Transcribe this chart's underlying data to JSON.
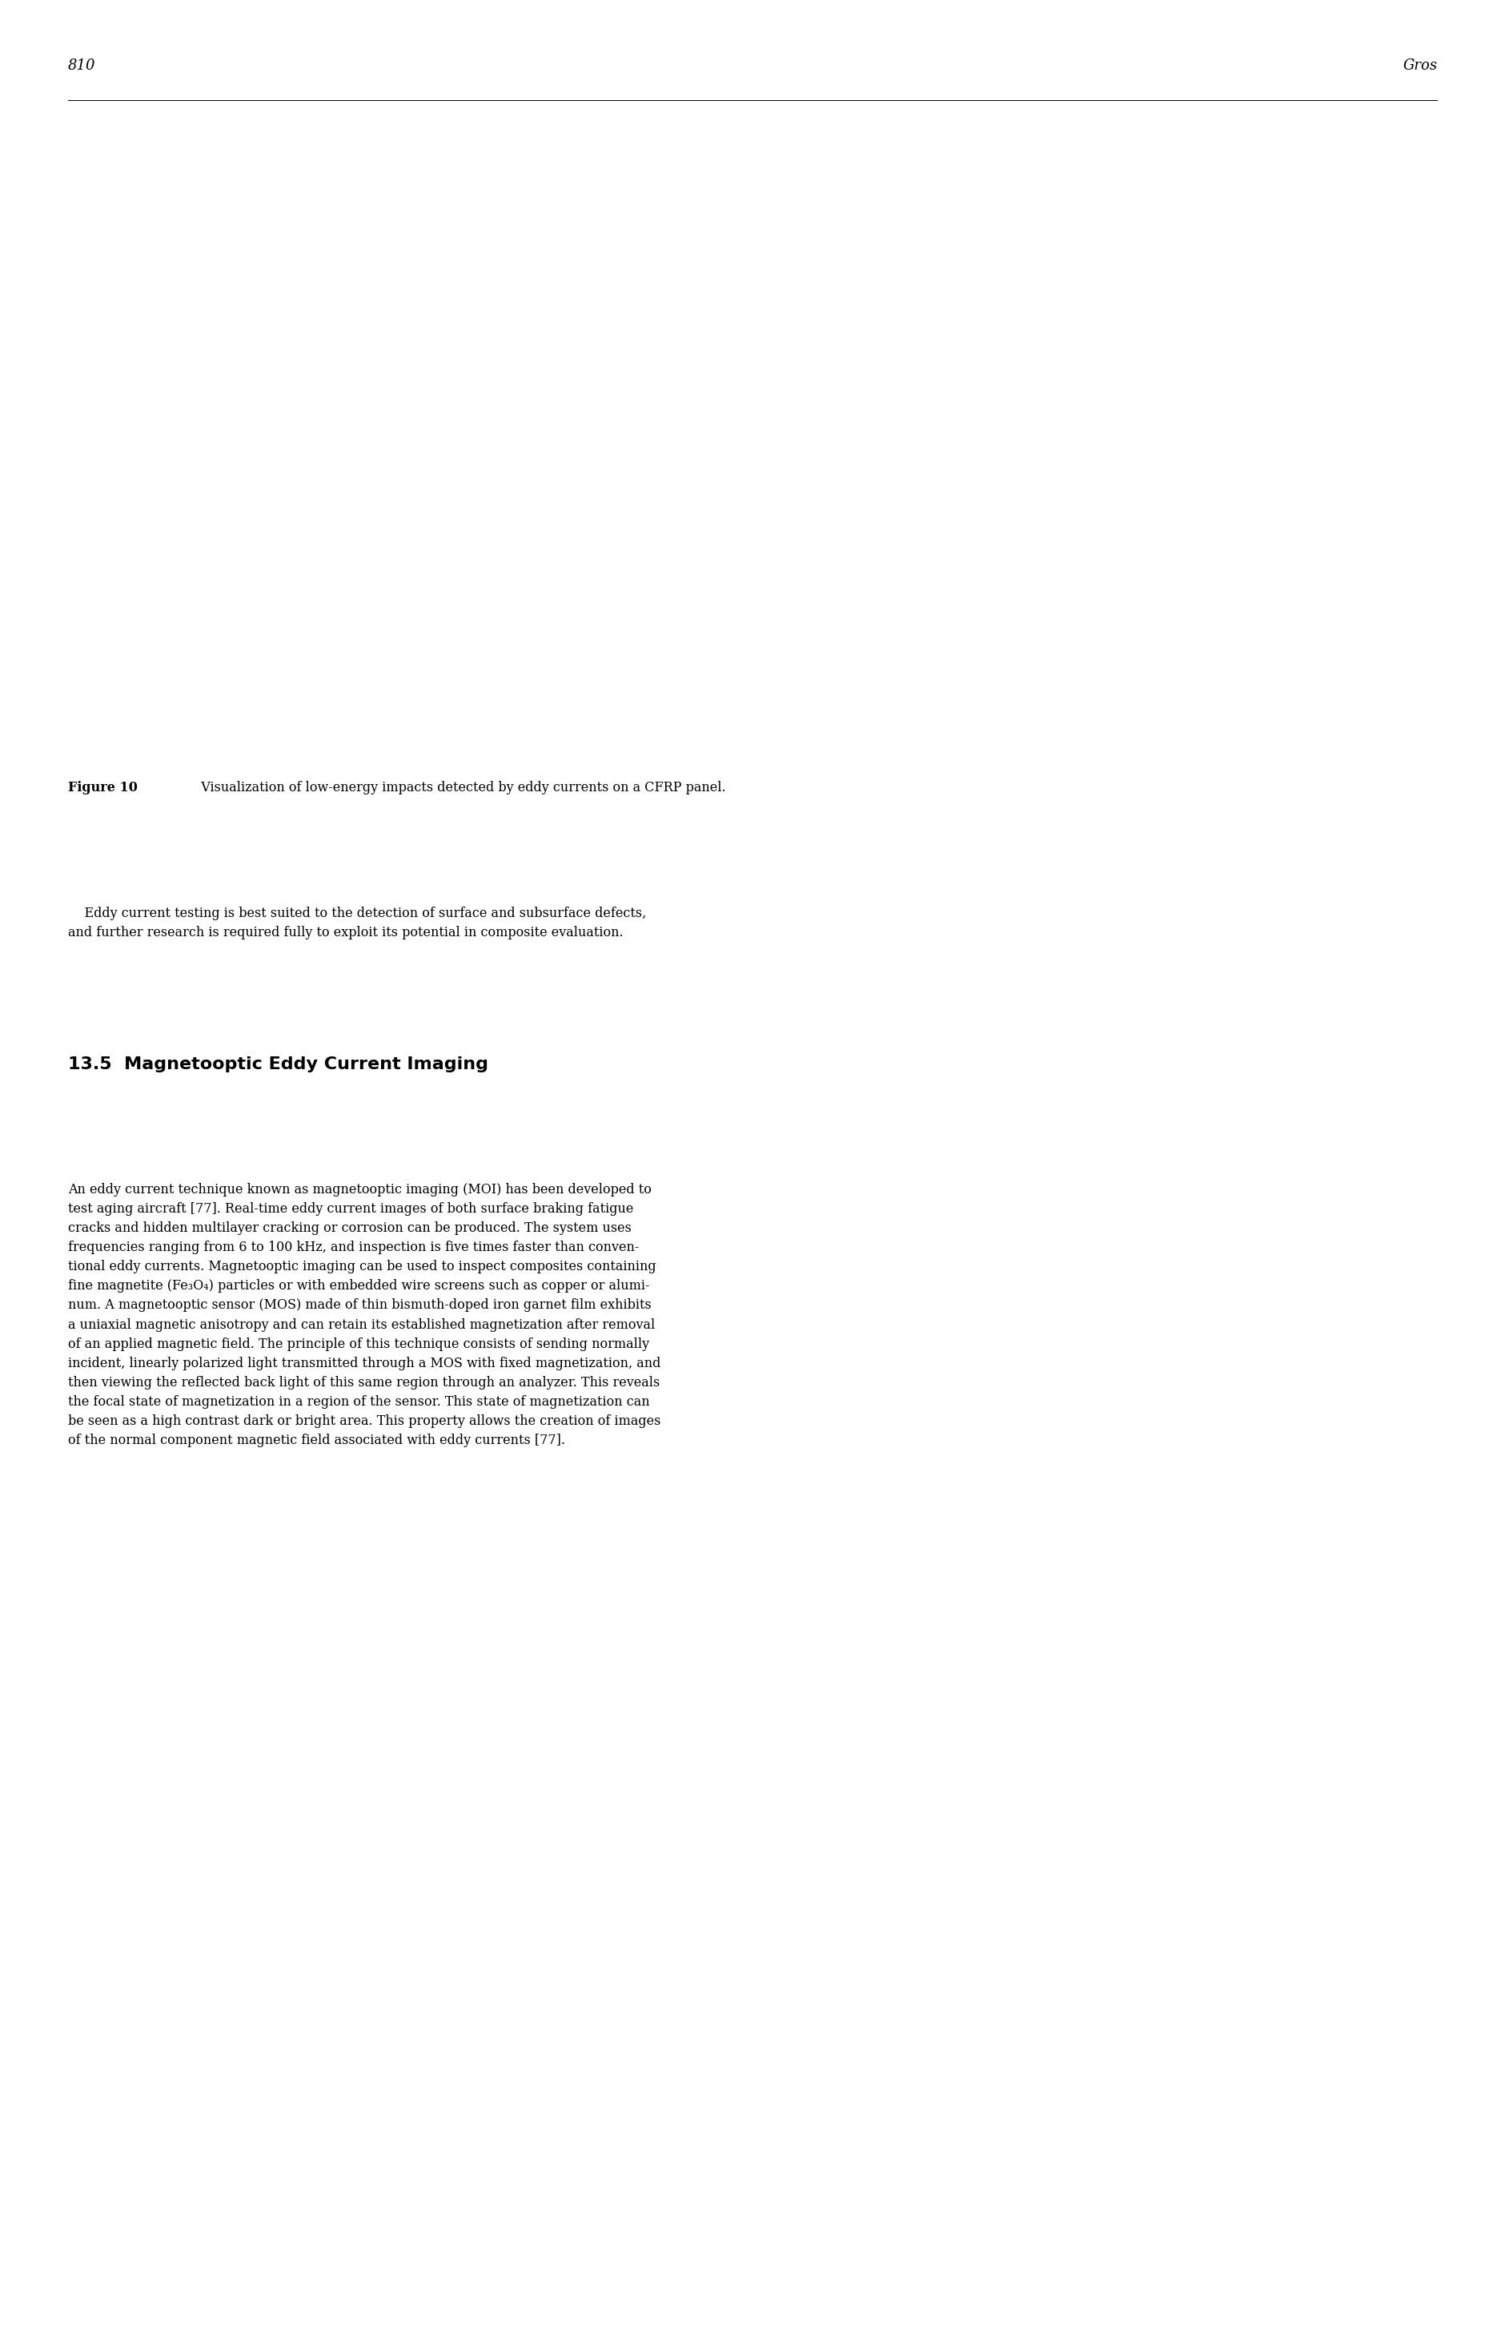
{
  "page_number": "810",
  "page_author": "Gros",
  "figure_caption_bold": "Figure 10",
  "figure_caption_rest": "  Visualization of low-energy impacts detected by eddy currents on a CFRP panel.",
  "paragraph1": "    Eddy current testing is best suited to the detection of surface and subsurface defects,\nand further research is required fully to exploit its potential in composite evaluation.",
  "section_number": "13.5",
  "section_title": "Magnetooptic Eddy Current Imaging",
  "paragraph2": "An eddy current technique known as magnetooptic imaging (MOI) has been developed to\ntest aging aircraft [77]. Real-time eddy current images of both surface braking fatigue\ncracks and hidden multilayer cracking or corrosion can be produced. The system uses\nfrequencies ranging from 6 to 100 kHz, and inspection is five times faster than conven-\ntional eddy currents. Magnetooptic imaging can be used to inspect composites containing\nfine magnetite (Fe₃O₄) particles or with embedded wire screens such as copper or alumi-\nnum. A magnetooptic sensor (MOS) made of thin bismuth-doped iron garnet film exhibits\na uniaxial magnetic anisotropy and can retain its established magnetization after removal\nof an applied magnetic field. The principle of this technique consists of sending normally\nincident, linearly polarized light transmitted through a MOS with fixed magnetization, and\nthen viewing the reflected back light of this same region through an analyzer. This reveals\nthe focal state of magnetization in a region of the sensor. This state of magnetization can\nbe seen as a high contrast dark or bright area. This property allows the creation of images\nof the normal component magnetic field associated with eddy currents [77].",
  "background_color": "#ffffff",
  "header_fontsize": 13,
  "caption_fontsize": 11.5,
  "body_fontsize": 11.5,
  "section_fontsize": 16
}
